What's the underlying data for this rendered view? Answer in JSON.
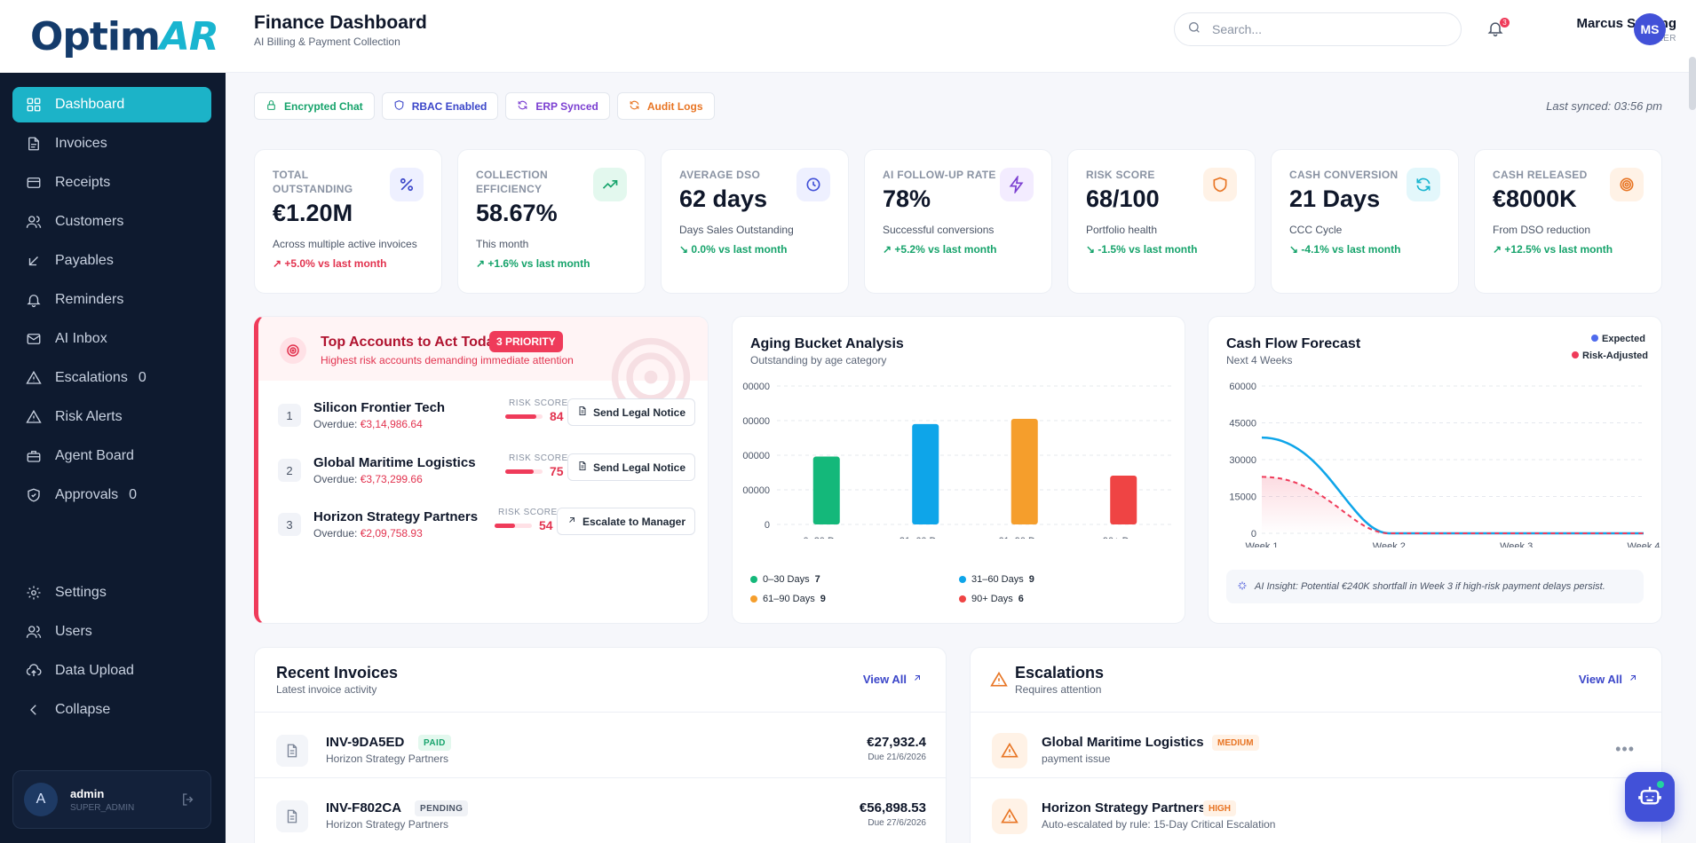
{
  "brand": {
    "logo_main": "Optim",
    "logo_accent": "AR"
  },
  "sidebar": {
    "items": [
      {
        "label": "Dashboard",
        "icon": "grid-icon",
        "active": true
      },
      {
        "label": "Invoices",
        "icon": "file-icon"
      },
      {
        "label": "Receipts",
        "icon": "receipt-icon"
      },
      {
        "label": "Customers",
        "icon": "users-icon"
      },
      {
        "label": "Payables",
        "icon": "arrow-down-left-icon"
      },
      {
        "label": "Reminders",
        "icon": "bell-icon"
      },
      {
        "label": "AI Inbox",
        "icon": "mail-icon"
      },
      {
        "label": "Escalations",
        "icon": "alert-triangle-icon",
        "count": "0"
      },
      {
        "label": "Risk Alerts",
        "icon": "alert-triangle-icon"
      },
      {
        "label": "Agent Board",
        "icon": "briefcase-icon"
      },
      {
        "label": "Approvals",
        "icon": "shield-check-icon",
        "count": "0"
      }
    ],
    "bottom_items": [
      {
        "label": "Settings",
        "icon": "gear-icon"
      },
      {
        "label": "Users",
        "icon": "users-icon"
      },
      {
        "label": "Data Upload",
        "icon": "cloud-upload-icon"
      },
      {
        "label": "Collapse",
        "icon": "chevron-left-icon"
      }
    ],
    "user": {
      "initial": "A",
      "name": "admin",
      "role": "SUPER_ADMIN"
    }
  },
  "header": {
    "title": "Finance Dashboard",
    "subtitle": "AI Billing & Payment Collection",
    "search_placeholder": "Search...",
    "notification_count": "3",
    "user_name": "Marcus Sterling",
    "user_role": "DEALER",
    "user_initials": "MS"
  },
  "badges": [
    {
      "label": "Encrypted Chat",
      "color": "#16a36b"
    },
    {
      "label": "RBAC Enabled",
      "color": "#3b46c9"
    },
    {
      "label": "ERP Synced",
      "color": "#7b3fd1"
    },
    {
      "label": "Audit Logs",
      "color": "#e87524"
    }
  ],
  "last_synced": "Last synced: 03:56 pm",
  "kpis": [
    {
      "label": "TOTAL OUTSTANDING",
      "value": "€1.20M",
      "desc": "Across multiple active invoices",
      "trend": "+5.0% vs last month",
      "trend_arrow": "↗",
      "icon": "percent-icon",
      "icon_color": "#3b46c9",
      "icon_bg": "#eef0ff"
    },
    {
      "label": "COLLECTION EFFICIENCY",
      "value": "58.67%",
      "desc": "This month",
      "trend": "+1.6% vs last month",
      "trend_arrow": "↗",
      "icon": "trending-up-icon",
      "icon_color": "#16a36b",
      "icon_bg": "#e3f8ee"
    },
    {
      "label": "AVERAGE DSO",
      "value": "62 days",
      "desc": "Days Sales Outstanding",
      "trend": "0.0% vs last month",
      "trend_arrow": "↘",
      "icon": "clock-icon",
      "icon_color": "#4251d8",
      "icon_bg": "#eef0ff"
    },
    {
      "label": "AI FOLLOW-UP RATE",
      "value": "78%",
      "desc": "Successful conversions",
      "trend": "+5.2% vs last month",
      "trend_arrow": "↗",
      "icon": "bolt-icon",
      "icon_color": "#7b3fd1",
      "icon_bg": "#f3ecff"
    },
    {
      "label": "RISK SCORE",
      "value": "68/100",
      "desc": "Portfolio health",
      "trend": "-1.5% vs last month",
      "trend_arrow": "↘",
      "icon": "shield-icon",
      "icon_color": "#e87524",
      "icon_bg": "#fff2e6"
    },
    {
      "label": "CASH CONVERSION",
      "value": "21 Days",
      "desc": "CCC Cycle",
      "trend": "-4.1% vs last month",
      "trend_arrow": "↘",
      "icon": "refresh-icon",
      "icon_color": "#19b5d0",
      "icon_bg": "#e3f7fb"
    },
    {
      "label": "CASH RELEASED",
      "value": "€8000K",
      "desc": "From DSO reduction",
      "trend": "+12.5% vs last month",
      "trend_arrow": "↗",
      "icon": "target-icon",
      "icon_color": "#e87524",
      "icon_bg": "#fff2e6"
    }
  ],
  "top_accounts": {
    "title": "Top Accounts to Act Today",
    "priority": "3 PRIORITY",
    "subtitle": "Highest risk accounts demanding immediate attention",
    "risk_label": "RISK SCORE",
    "rows": [
      {
        "rank": "1",
        "name": "Silicon Frontier Tech",
        "overdue_label": "Overdue:",
        "overdue": "€3,14,986.64",
        "score": 84,
        "action": "Send Legal Notice",
        "action_icon": "document-icon"
      },
      {
        "rank": "2",
        "name": "Global Maritime Logistics",
        "overdue_label": "Overdue:",
        "overdue": "€3,73,299.66",
        "score": 75,
        "action": "Send Legal Notice",
        "action_icon": "document-icon"
      },
      {
        "rank": "3",
        "name": "Horizon Strategy Partners",
        "overdue_label": "Overdue:",
        "overdue": "€2,09,758.93",
        "score": 54,
        "action": "Escalate to Manager",
        "action_icon": "arrow-up-right-icon"
      }
    ]
  },
  "aging": {
    "title": "Aging Bucket Analysis",
    "subtitle": "Outstanding by age category",
    "legend": [
      {
        "label": "0–30 Days",
        "count": "7",
        "color": "#14b87a"
      },
      {
        "label": "31–60 Days",
        "count": "9",
        "color": "#0ea5e9"
      },
      {
        "label": "61–90 Days",
        "count": "9",
        "color": "#f59e2c"
      },
      {
        "label": "90+ Days",
        "count": "6",
        "color": "#ef4444"
      }
    ]
  },
  "cashflow": {
    "title": "Cash Flow Forecast",
    "subtitle": "Next 4 Weeks",
    "insight": "AI Insight: Potential €240K shortfall in Week 3 if high-risk payment delays persist."
  },
  "chart_data": [
    {
      "type": "bar",
      "title": "Aging Bucket Analysis",
      "categories": [
        "0–30 Days",
        "31–60 Days",
        "61–90 Days",
        "90+ Days"
      ],
      "values": [
        196000,
        290000,
        305000,
        141000
      ],
      "colors": [
        "#14b87a",
        "#0ea5e9",
        "#f59e2c",
        "#ef4444"
      ],
      "ytick_labels": [
        "0",
        "00000",
        "00000",
        "00000",
        "00000"
      ],
      "ytick_values": [
        0,
        100000,
        200000,
        300000,
        400000
      ],
      "ylim": [
        0,
        400000
      ],
      "grid": true
    },
    {
      "type": "line",
      "title": "Cash Flow Forecast",
      "categories": [
        "Week 1",
        "Week 2",
        "Week 3",
        "Week 4"
      ],
      "series": [
        {
          "name": "Expected",
          "color": "#0ea5e9",
          "values": [
            39000,
            0,
            0,
            0
          ]
        },
        {
          "name": "Risk-Adjusted",
          "color": "#ef3b5a",
          "values": [
            23000,
            0,
            0,
            0
          ]
        }
      ],
      "ytick_labels": [
        "0",
        "15000",
        "30000",
        "45000",
        "60000"
      ],
      "ytick_display": [
        "0",
        "15000",
        "30000",
        "45000",
        "60000"
      ],
      "ylim": [
        0,
        60000
      ],
      "grid": true,
      "legend": "top-right"
    }
  ],
  "recent_invoices": {
    "title": "Recent Invoices",
    "subtitle": "Latest invoice activity",
    "view_all": "View All",
    "rows": [
      {
        "id": "INV-9DA5ED",
        "status": "PAID",
        "customer": "Horizon Strategy Partners",
        "amount": "€27,932.4",
        "due": "Due 21/6/2026"
      },
      {
        "id": "INV-F802CA",
        "status": "PENDING",
        "customer": "Horizon Strategy Partners",
        "amount": "€56,898.53",
        "due": "Due 27/6/2026"
      }
    ]
  },
  "escalations": {
    "title": "Escalations",
    "subtitle": "Requires attention",
    "view_all": "View All",
    "rows": [
      {
        "name": "Global Maritime Logistics",
        "level": "MEDIUM",
        "desc": "payment issue"
      },
      {
        "name": "Horizon Strategy Partners",
        "level": "HIGH",
        "desc": "Auto-escalated by rule: 15-Day Critical Escalation"
      }
    ]
  }
}
